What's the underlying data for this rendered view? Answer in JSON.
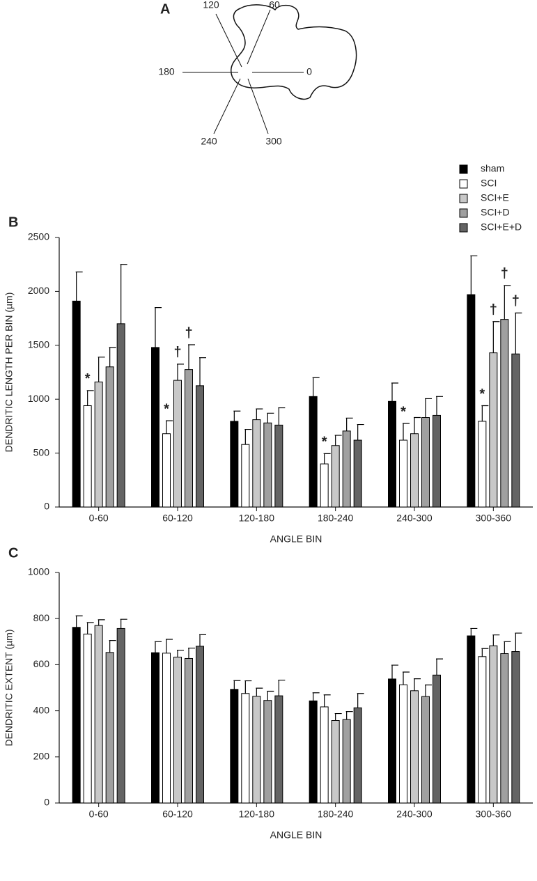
{
  "diagram": {
    "label": "A",
    "angle_labels": [
      "120",
      "60",
      "180",
      "0",
      "240",
      "300"
    ]
  },
  "chart_data": [
    {
      "type": "bar",
      "panel": "B",
      "y_label": "DENDRITIC LENGTH PER BIN (µm)",
      "x_label": "ANGLE BIN",
      "categories": [
        "0-60",
        "60-120",
        "120-180",
        "180-240",
        "240-300",
        "300-360"
      ],
      "series": [
        {
          "name": "sham",
          "color": "#000000",
          "values": [
            1910,
            1480,
            795,
            1025,
            980,
            1970
          ],
          "errors": [
            270,
            370,
            95,
            175,
            170,
            360
          ],
          "annotations": [
            null,
            null,
            null,
            null,
            null,
            null
          ]
        },
        {
          "name": "SCI",
          "color": "#ffffff",
          "values": [
            940,
            680,
            580,
            400,
            620,
            795
          ],
          "errors": [
            140,
            120,
            140,
            95,
            155,
            145
          ],
          "annotations": [
            "*",
            "*",
            null,
            "*",
            "*",
            "*"
          ]
        },
        {
          "name": "SCI+E",
          "color": "#c8c8c8",
          "values": [
            1160,
            1175,
            810,
            570,
            680,
            1430
          ],
          "errors": [
            230,
            150,
            100,
            95,
            150,
            290
          ],
          "annotations": [
            null,
            "†",
            null,
            null,
            null,
            "†"
          ]
        },
        {
          "name": "SCI+D",
          "color": "#a0a0a0",
          "values": [
            1300,
            1275,
            780,
            705,
            830,
            1740
          ],
          "errors": [
            180,
            230,
            90,
            120,
            175,
            315
          ],
          "annotations": [
            null,
            "†",
            null,
            null,
            null,
            "†"
          ]
        },
        {
          "name": "SCI+E+D",
          "color": "#646464",
          "values": [
            1700,
            1125,
            760,
            620,
            850,
            1420
          ],
          "errors": [
            550,
            260,
            160,
            145,
            175,
            380
          ],
          "annotations": [
            null,
            null,
            null,
            null,
            null,
            "†"
          ]
        }
      ],
      "ylim": [
        0,
        2500
      ],
      "yticks": [
        0,
        500,
        1000,
        1500,
        2000,
        2500
      ],
      "legend": "top-right"
    },
    {
      "type": "bar",
      "panel": "C",
      "y_label": "DENDRITIC EXTENT (µm)",
      "x_label": "ANGLE BIN",
      "categories": [
        "0-60",
        "60-120",
        "120-180",
        "180-240",
        "240-300",
        "300-360"
      ],
      "series": [
        {
          "name": "sham",
          "color": "#000000",
          "values": [
            762,
            652,
            493,
            443,
            538,
            725
          ],
          "errors": [
            50,
            48,
            38,
            35,
            60,
            32
          ]
        },
        {
          "name": "SCI",
          "color": "#ffffff",
          "values": [
            733,
            650,
            475,
            417,
            513,
            635
          ],
          "errors": [
            50,
            60,
            55,
            52,
            55,
            35
          ]
        },
        {
          "name": "SCI+E",
          "color": "#c8c8c8",
          "values": [
            770,
            633,
            463,
            358,
            487,
            682
          ],
          "errors": [
            25,
            30,
            35,
            30,
            52,
            47
          ]
        },
        {
          "name": "SCI+D",
          "color": "#a0a0a0",
          "values": [
            653,
            627,
            445,
            362,
            462,
            648
          ],
          "errors": [
            52,
            45,
            40,
            35,
            50,
            52
          ]
        },
        {
          "name": "SCI+E+D",
          "color": "#646464",
          "values": [
            757,
            680,
            465,
            413,
            555,
            657
          ],
          "errors": [
            40,
            50,
            68,
            62,
            70,
            80
          ]
        }
      ],
      "ylim": [
        0,
        1000
      ],
      "yticks": [
        0,
        200,
        400,
        600,
        800,
        1000
      ]
    }
  ]
}
